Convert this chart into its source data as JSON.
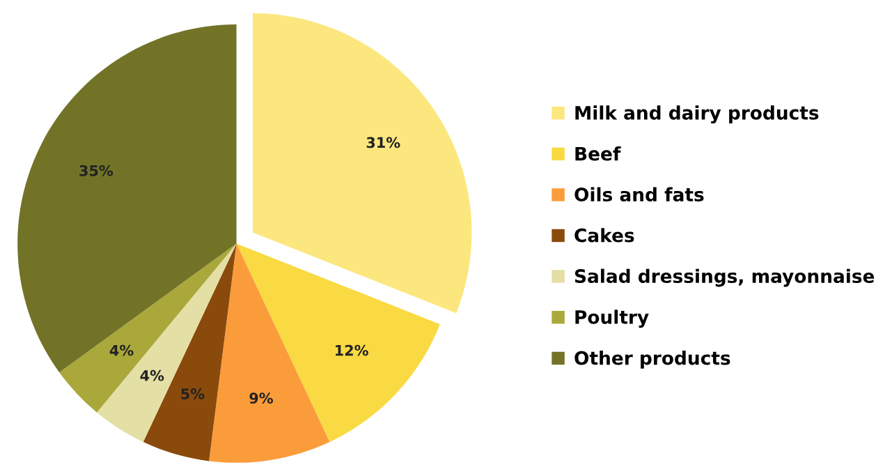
{
  "chart_data": {
    "type": "pie",
    "categories": [
      "Milk and dairy products",
      "Beef",
      "Oils and fats",
      "Cakes",
      "Salad dressings, mayonnaise",
      "Poultry",
      "Other products"
    ],
    "values": [
      31,
      12,
      9,
      5,
      4,
      4,
      35
    ],
    "colors": [
      "#fce77f",
      "#f9da42",
      "#fb9c3b",
      "#8a4a0c",
      "#e3dfa5",
      "#aaa83b",
      "#727327"
    ],
    "value_labels": [
      "31%",
      "12%",
      "9%",
      "5%",
      "4%",
      "4%",
      "35%"
    ],
    "legend": "right"
  }
}
